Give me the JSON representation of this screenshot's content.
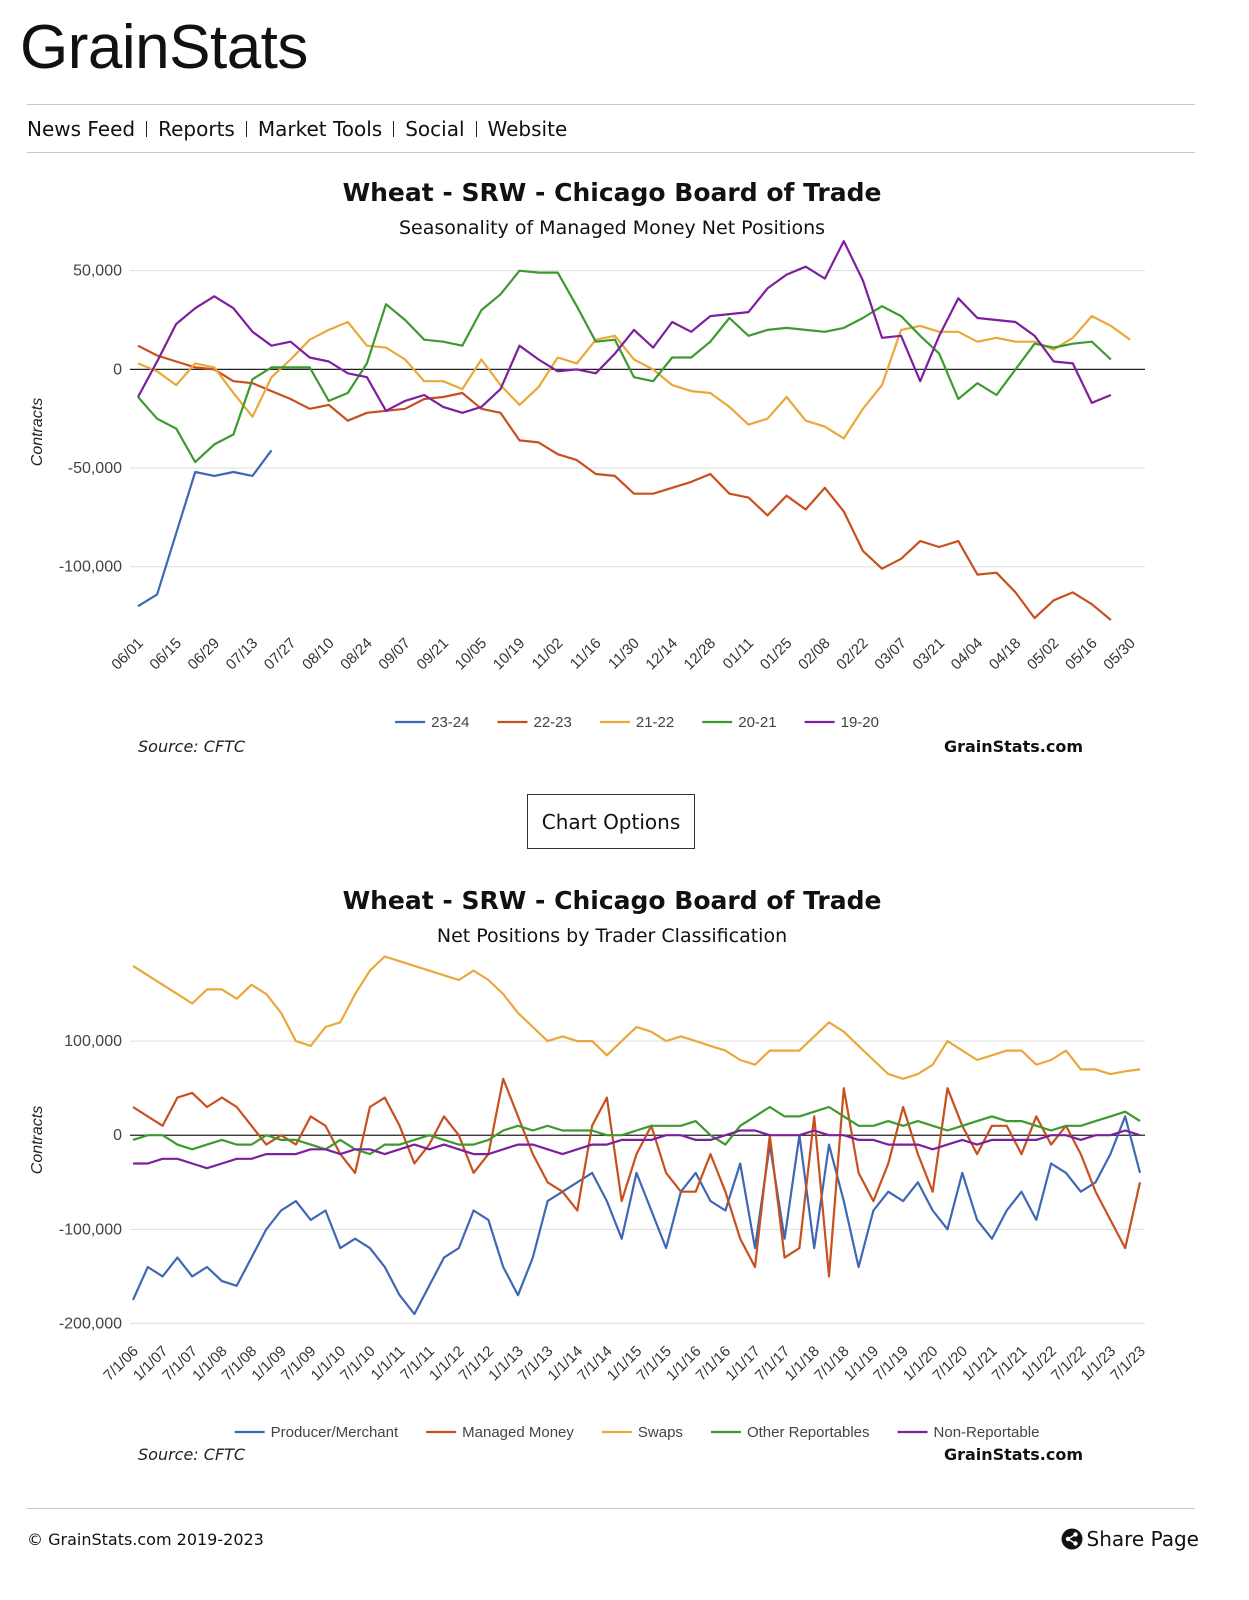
{
  "header": {
    "logo": "GrainStats",
    "nav": [
      "News Feed",
      "Reports",
      "Market Tools",
      "Social",
      "Website"
    ]
  },
  "button": "Chart Options",
  "footer": {
    "copyright": "© GrainStats.com 2019-2023",
    "share": "Share Page"
  },
  "chart_data": [
    {
      "type": "line",
      "title": "Wheat - SRW - Chicago Board of Trade",
      "subtitle": "Seasonality of Managed Money Net Positions",
      "y_label": "Contracts",
      "source": "Source: CFTC",
      "credit": "GrainStats.com",
      "legend": "bottom",
      "grid": true,
      "ylim": [
        -128000,
        63000
      ],
      "yticks": [
        {
          "value": -100000,
          "label": "-100,000"
        },
        {
          "value": -50000,
          "label": "-50,000"
        },
        0,
        {
          "value": 50000,
          "label": "50,000"
        }
      ],
      "categories": [
        "06/01",
        null,
        "06/15",
        null,
        "06/29",
        null,
        "07/13",
        null,
        "07/27",
        null,
        "08/10",
        null,
        "08/24",
        null,
        "09/07",
        null,
        "09/21",
        null,
        "10/05",
        null,
        "10/19",
        null,
        "11/02",
        null,
        "11/16",
        null,
        "11/30",
        null,
        "12/14",
        null,
        "12/28",
        null,
        "01/11",
        null,
        "01/25",
        null,
        "02/08",
        null,
        "02/22",
        null,
        "03/07",
        null,
        "03/21",
        null,
        "04/04",
        null,
        "04/18",
        null,
        "05/02",
        null,
        "05/16",
        null,
        "05/30"
      ],
      "series": [
        {
          "name": "23-24",
          "color": "#3f67b5",
          "values": [
            -120000,
            -114000,
            -83000,
            -52000,
            -54000,
            -52000,
            -54000,
            -41000,
            null,
            null,
            null,
            null,
            null,
            null,
            null,
            null,
            null,
            null,
            null,
            null,
            null,
            null,
            null,
            null,
            null,
            null,
            null,
            null,
            null,
            null,
            null,
            null,
            null,
            null,
            null,
            null,
            null,
            null,
            null,
            null,
            null,
            null,
            null,
            null,
            null,
            null,
            null,
            null,
            null,
            null,
            null,
            null,
            null
          ]
        },
        {
          "name": "22-23",
          "color": "#c8501e",
          "values": [
            12000,
            7000,
            4000,
            1000,
            0,
            -6000,
            -7000,
            -11000,
            -15000,
            -20000,
            -18000,
            -26000,
            -22000,
            -21000,
            -20000,
            -15000,
            -14000,
            -12000,
            -20000,
            -22000,
            -36000,
            -37000,
            -43000,
            -46000,
            -53000,
            -54000,
            -63000,
            -63000,
            -60000,
            -57000,
            -53000,
            -63000,
            -65000,
            -74000,
            -64000,
            -71000,
            -60000,
            -72000,
            -92000,
            -101000,
            -96000,
            -87000,
            -90000,
            -87000,
            -104000,
            -103000,
            -113000,
            -126000,
            -117000,
            -113000,
            -119000,
            -127000,
            null
          ]
        },
        {
          "name": "21-22",
          "color": "#eba83a",
          "values": [
            3000,
            -1000,
            -8000,
            3000,
            1000,
            -12000,
            -24000,
            -4000,
            5000,
            15000,
            20000,
            24000,
            12000,
            11000,
            5000,
            -6000,
            -6000,
            -10000,
            5000,
            -8000,
            -18000,
            -9000,
            6000,
            3000,
            15000,
            17000,
            5000,
            0,
            -8000,
            -11000,
            -12000,
            -19000,
            -28000,
            -25000,
            -14000,
            -26000,
            -29000,
            -35000,
            -20000,
            -8000,
            20000,
            22000,
            19000,
            19000,
            14000,
            16000,
            14000,
            14000,
            10000,
            16000,
            27000,
            22000,
            15000
          ]
        },
        {
          "name": "20-21",
          "color": "#3c9a2e",
          "values": [
            -14000,
            -25000,
            -30000,
            -47000,
            -38000,
            -33000,
            -5000,
            1000,
            1000,
            1000,
            -16000,
            -12000,
            3000,
            33000,
            25000,
            15000,
            14000,
            12000,
            30000,
            38000,
            50000,
            49000,
            49000,
            32000,
            14000,
            15000,
            -4000,
            -6000,
            6000,
            6000,
            14000,
            26000,
            17000,
            20000,
            21000,
            20000,
            19000,
            21000,
            26000,
            32000,
            27000,
            17000,
            8000,
            -15000,
            -7000,
            -13000,
            0,
            13000,
            11000,
            13000,
            14000,
            5000,
            null
          ]
        },
        {
          "name": "19-20",
          "color": "#7d1f9e",
          "values": [
            -14000,
            4000,
            23000,
            31000,
            37000,
            31000,
            19000,
            12000,
            14000,
            6000,
            4000,
            -2000,
            -4000,
            -21000,
            -16000,
            -13000,
            -19000,
            -22000,
            -19000,
            -10000,
            12000,
            5000,
            -1000,
            0,
            -2000,
            8000,
            20000,
            11000,
            24000,
            19000,
            27000,
            28000,
            29000,
            41000,
            48000,
            52000,
            46000,
            65000,
            45000,
            16000,
            17000,
            -6000,
            17000,
            36000,
            26000,
            25000,
            24000,
            17000,
            4000,
            3000,
            -17000,
            -13000,
            null
          ]
        }
      ]
    },
    {
      "type": "line",
      "title": "Wheat - SRW - Chicago Board of Trade",
      "subtitle": "Net Positions by Trader Classification",
      "y_label": "Contracts",
      "source": "Source: CFTC",
      "credit": "GrainStats.com",
      "legend": "bottom",
      "grid": true,
      "ylim": [
        -207000,
        199000
      ],
      "yticks": [
        {
          "value": -200000,
          "label": "-200,000"
        },
        {
          "value": -100000,
          "label": "-100,000"
        },
        0,
        {
          "value": 100000,
          "label": "100,000"
        }
      ],
      "categories": [
        "7/1/06",
        null,
        "1/1/07",
        null,
        "7/1/07",
        null,
        "1/1/08",
        null,
        "7/1/08",
        null,
        "1/1/09",
        null,
        "7/1/09",
        null,
        "1/1/10",
        null,
        "7/1/10",
        null,
        "1/1/11",
        null,
        "7/1/11",
        null,
        "1/1/12",
        null,
        "7/1/12",
        null,
        "1/1/13",
        null,
        "7/1/13",
        null,
        "1/1/14",
        null,
        "7/1/14",
        null,
        "1/1/15",
        null,
        "7/1/15",
        null,
        "1/1/16",
        null,
        "7/1/16",
        null,
        "1/1/17",
        null,
        "7/1/17",
        null,
        "1/1/18",
        null,
        "7/1/18",
        null,
        "1/1/19",
        null,
        "7/1/19",
        null,
        "1/1/20",
        null,
        "7/1/20",
        null,
        "1/1/21",
        null,
        "7/1/21",
        null,
        "1/1/22",
        null,
        "7/1/22",
        null,
        "1/1/23",
        null,
        "7/1/23"
      ],
      "series": [
        {
          "name": "Producer/Merchant",
          "color": "#3f67b5",
          "values": [
            -175000,
            -140000,
            -150000,
            -130000,
            -150000,
            -140000,
            -155000,
            -160000,
            -130000,
            -100000,
            -80000,
            -70000,
            -90000,
            -80000,
            -120000,
            -110000,
            -120000,
            -140000,
            -170000,
            -190000,
            -160000,
            -130000,
            -120000,
            -80000,
            -90000,
            -140000,
            -170000,
            -130000,
            -70000,
            -60000,
            -50000,
            -40000,
            -70000,
            -110000,
            -40000,
            -80000,
            -120000,
            -60000,
            -40000,
            -70000,
            -80000,
            -30000,
            -120000,
            -10000,
            -110000,
            0,
            -120000,
            -10000,
            -70000,
            -140000,
            -80000,
            -60000,
            -70000,
            -50000,
            -80000,
            -100000,
            -40000,
            -90000,
            -110000,
            -80000,
            -60000,
            -90000,
            -30000,
            -40000,
            -60000,
            -50000,
            -20000,
            20000,
            -40000
          ]
        },
        {
          "name": "Managed Money",
          "color": "#c8501e",
          "values": [
            30000,
            20000,
            10000,
            40000,
            45000,
            30000,
            40000,
            30000,
            10000,
            -10000,
            0,
            -10000,
            20000,
            10000,
            -20000,
            -40000,
            30000,
            40000,
            10000,
            -30000,
            -10000,
            20000,
            0,
            -40000,
            -20000,
            60000,
            20000,
            -20000,
            -50000,
            -60000,
            -80000,
            10000,
            40000,
            -70000,
            -20000,
            10000,
            -40000,
            -60000,
            -60000,
            -20000,
            -60000,
            -110000,
            -140000,
            0,
            -130000,
            -120000,
            20000,
            -150000,
            50000,
            -40000,
            -70000,
            -30000,
            30000,
            -20000,
            -60000,
            50000,
            10000,
            -20000,
            10000,
            10000,
            -20000,
            20000,
            -10000,
            10000,
            -20000,
            -60000,
            -90000,
            -120000,
            -50000
          ]
        },
        {
          "name": "Swaps",
          "color": "#eba83a",
          "values": [
            180000,
            170000,
            160000,
            150000,
            140000,
            155000,
            155000,
            145000,
            160000,
            150000,
            130000,
            100000,
            95000,
            115000,
            120000,
            150000,
            175000,
            190000,
            185000,
            180000,
            175000,
            170000,
            165000,
            175000,
            165000,
            150000,
            130000,
            115000,
            100000,
            105000,
            100000,
            100000,
            85000,
            100000,
            115000,
            110000,
            100000,
            105000,
            100000,
            95000,
            90000,
            80000,
            75000,
            90000,
            90000,
            90000,
            105000,
            120000,
            110000,
            95000,
            80000,
            65000,
            60000,
            65000,
            75000,
            100000,
            90000,
            80000,
            85000,
            90000,
            90000,
            75000,
            80000,
            90000,
            70000,
            70000,
            65000,
            68000,
            70000
          ]
        },
        {
          "name": "Other Reportables",
          "color": "#3c9a2e",
          "values": [
            -5000,
            0,
            0,
            -10000,
            -15000,
            -10000,
            -5000,
            -10000,
            -10000,
            0,
            -5000,
            -5000,
            -10000,
            -15000,
            -5000,
            -15000,
            -20000,
            -10000,
            -10000,
            -5000,
            0,
            -5000,
            -10000,
            -10000,
            -5000,
            5000,
            10000,
            5000,
            10000,
            5000,
            5000,
            5000,
            0,
            0,
            5000,
            10000,
            10000,
            10000,
            15000,
            0,
            -10000,
            10000,
            20000,
            30000,
            20000,
            20000,
            25000,
            30000,
            20000,
            10000,
            10000,
            15000,
            10000,
            15000,
            10000,
            5000,
            10000,
            15000,
            20000,
            15000,
            15000,
            10000,
            5000,
            10000,
            10000,
            15000,
            20000,
            25000,
            15000
          ]
        },
        {
          "name": "Non-Reportable",
          "color": "#7d1f9e",
          "values": [
            -30000,
            -30000,
            -25000,
            -25000,
            -30000,
            -35000,
            -30000,
            -25000,
            -25000,
            -20000,
            -20000,
            -20000,
            -15000,
            -15000,
            -20000,
            -15000,
            -15000,
            -20000,
            -15000,
            -10000,
            -15000,
            -10000,
            -15000,
            -20000,
            -20000,
            -15000,
            -10000,
            -10000,
            -15000,
            -20000,
            -15000,
            -10000,
            -10000,
            -5000,
            -5000,
            -5000,
            0,
            0,
            -5000,
            -5000,
            0,
            5000,
            5000,
            0,
            0,
            0,
            5000,
            0,
            0,
            -5000,
            -5000,
            -10000,
            -10000,
            -10000,
            -15000,
            -10000,
            -5000,
            -10000,
            -5000,
            -5000,
            -5000,
            -5000,
            0,
            0,
            -5000,
            0,
            0,
            5000,
            0
          ]
        }
      ]
    }
  ]
}
